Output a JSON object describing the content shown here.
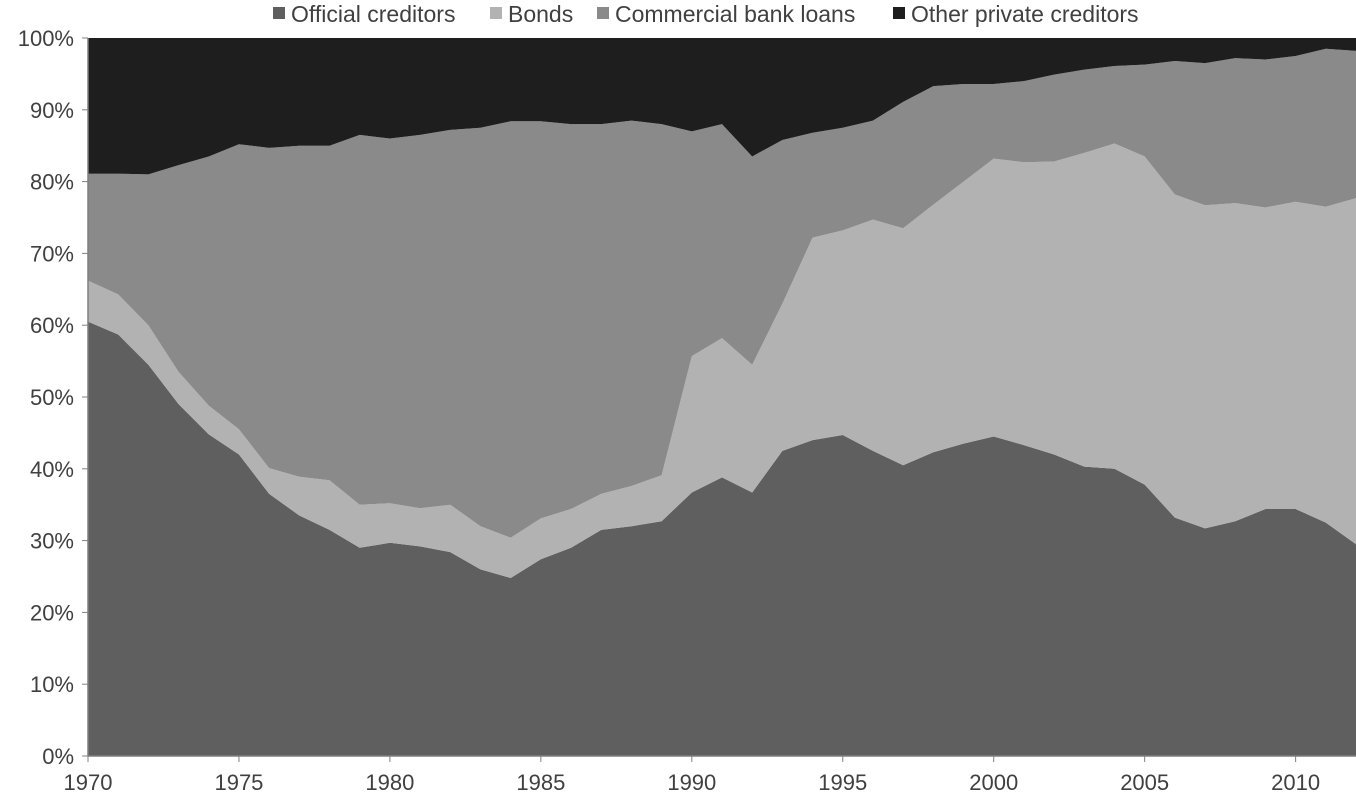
{
  "chart_data": {
    "type": "area",
    "stacked": true,
    "percent_stacked": true,
    "title": "",
    "xlabel": "",
    "ylabel": "",
    "legend_position": "top",
    "xlim": [
      1970,
      2012
    ],
    "ylim": [
      0,
      100
    ],
    "x_ticks": [
      "1970",
      "1975",
      "1980",
      "1985",
      "1990",
      "1995",
      "2000",
      "2005",
      "2010"
    ],
    "y_ticks": [
      "0%",
      "10%",
      "20%",
      "30%",
      "40%",
      "50%",
      "60%",
      "70%",
      "80%",
      "90%",
      "100%"
    ],
    "x": [
      1970,
      1971,
      1972,
      1973,
      1974,
      1975,
      1976,
      1977,
      1978,
      1979,
      1980,
      1981,
      1982,
      1983,
      1984,
      1985,
      1986,
      1987,
      1988,
      1989,
      1990,
      1991,
      1992,
      1993,
      1994,
      1995,
      1996,
      1997,
      1998,
      1999,
      2000,
      2001,
      2002,
      2003,
      2004,
      2005,
      2006,
      2007,
      2008,
      2009,
      2010,
      2011,
      2012
    ],
    "series": [
      {
        "name": "Official creditors",
        "color": "#5f5f5f",
        "values": [
          60.5,
          58.7,
          54.5,
          49,
          44.8,
          42,
          36.5,
          33.5,
          31.5,
          29,
          29.7,
          29.2,
          28.4,
          26,
          24.8,
          27.4,
          29,
          31.5,
          32,
          32.7,
          36.7,
          38.8,
          36.7,
          42.5,
          44,
          44.7,
          42.5,
          40.5,
          42.3,
          43.5,
          44.5,
          43.3,
          42,
          40.3,
          40,
          37.8,
          33.2,
          31.7,
          32.7,
          34.4,
          34.4,
          32.5,
          29.5
        ]
      },
      {
        "name": "Bonds",
        "color": "#b2b2b2",
        "values": [
          5.7,
          5.6,
          5.5,
          4.5,
          4,
          3.5,
          3.6,
          5.4,
          6.9,
          6,
          5.5,
          5.3,
          6.6,
          6,
          5.6,
          5.7,
          5.4,
          5,
          5.6,
          6.4,
          19,
          19.4,
          17.8,
          20.5,
          28.2,
          28.5,
          32.2,
          33,
          34.5,
          36.5,
          38.7,
          39.4,
          40.8,
          43.7,
          45.3,
          45.7,
          45,
          45,
          44.3,
          42,
          42.8,
          44,
          48.2
        ]
      },
      {
        "name": "Commercial bank loans",
        "color": "#8a8a8a",
        "values": [
          14.9,
          16.8,
          21,
          28.8,
          34.7,
          39.7,
          44.6,
          46.1,
          46.6,
          51.5,
          50.8,
          52,
          52.2,
          55.5,
          58,
          55.3,
          53.6,
          51.5,
          50.9,
          48.9,
          31.3,
          29.8,
          29,
          22.8,
          14.6,
          14.3,
          13.8,
          17.6,
          16.5,
          13.6,
          10.4,
          11.3,
          12.1,
          11.6,
          10.8,
          12.8,
          18.6,
          19.8,
          20.2,
          20.6,
          20.3,
          22,
          20.5
        ]
      },
      {
        "name": "Other private creditors",
        "color": "#1e1e1e",
        "values": [
          18.9,
          18.9,
          19,
          17.7,
          16.5,
          14.8,
          15.3,
          15,
          15,
          13.5,
          14,
          13.5,
          12.8,
          12.5,
          11.6,
          11.6,
          12,
          12,
          11.5,
          12,
          13,
          12,
          16.5,
          14.2,
          13.2,
          12.5,
          11.5,
          8.9,
          6.7,
          6.4,
          6.4,
          6,
          5.1,
          4.4,
          3.9,
          3.7,
          3.2,
          3.5,
          2.8,
          3,
          2.5,
          1.5,
          1.8
        ]
      }
    ]
  }
}
